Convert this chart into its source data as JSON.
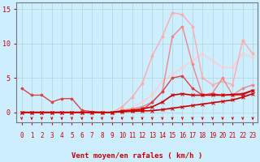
{
  "xlabel": "Vent moyen/en rafales ( km/h )",
  "xlim_min": -0.5,
  "xlim_max": 23.5,
  "ylim_min": -1.5,
  "ylim_max": 16,
  "yticks": [
    0,
    5,
    10,
    15
  ],
  "xticks": [
    0,
    1,
    2,
    3,
    4,
    5,
    6,
    7,
    8,
    9,
    10,
    11,
    12,
    13,
    14,
    15,
    16,
    17,
    18,
    19,
    20,
    21,
    22,
    23
  ],
  "bg_color": "#cceeff",
  "grid_color": "#aacccc",
  "lines": [
    {
      "x": [
        0,
        1,
        2,
        3,
        4,
        5,
        6,
        7,
        8,
        9,
        10,
        11,
        12,
        13,
        14,
        15,
        16,
        17,
        18,
        19,
        20,
        21,
        22,
        23
      ],
      "y": [
        0,
        0,
        0,
        0,
        0,
        0,
        0,
        0,
        0,
        0,
        0.1,
        0.15,
        0.2,
        0.25,
        0.4,
        0.6,
        0.8,
        1.0,
        1.2,
        1.4,
        1.6,
        1.8,
        2.2,
        2.7
      ],
      "color": "#cc0000",
      "lw": 1.2,
      "marker": "x",
      "ms": 3,
      "zorder": 5
    },
    {
      "x": [
        0,
        1,
        2,
        3,
        4,
        5,
        6,
        7,
        8,
        9,
        10,
        11,
        12,
        13,
        14,
        15,
        16,
        17,
        18,
        19,
        20,
        21,
        22,
        23
      ],
      "y": [
        0,
        0,
        0,
        0,
        0,
        0,
        0,
        0,
        0,
        0,
        0.2,
        0.3,
        0.5,
        0.8,
        1.5,
        2.5,
        2.7,
        2.5,
        2.5,
        2.5,
        2.5,
        2.6,
        2.7,
        3.2
      ],
      "color": "#cc0000",
      "lw": 1.2,
      "marker": "x",
      "ms": 3,
      "zorder": 4
    },
    {
      "x": [
        0,
        1,
        2,
        3,
        4,
        5,
        6,
        7,
        8,
        9,
        10,
        11,
        12,
        13,
        14,
        15,
        16,
        17,
        18,
        19,
        20,
        21,
        22,
        23
      ],
      "y": [
        3.5,
        2.5,
        2.5,
        1.5,
        2.0,
        2.0,
        0.3,
        0.1,
        0.0,
        0.0,
        0.1,
        0.2,
        0.3,
        1.5,
        3.0,
        5.0,
        5.3,
        3.5,
        2.5,
        2.7,
        2.5,
        2.5,
        2.5,
        3.2
      ],
      "color": "#dd4444",
      "lw": 1.0,
      "marker": "o",
      "ms": 2,
      "zorder": 3
    },
    {
      "x": [
        0,
        1,
        2,
        3,
        4,
        5,
        6,
        7,
        8,
        9,
        10,
        11,
        12,
        13,
        14,
        15,
        16,
        17,
        18,
        19,
        20,
        21,
        22,
        23
      ],
      "y": [
        0,
        0,
        0,
        0,
        0,
        0,
        0,
        0,
        0,
        0,
        0.3,
        0.5,
        0.8,
        1.5,
        3.0,
        11.0,
        12.5,
        7.0,
        2.5,
        2.8,
        5.0,
        2.5,
        3.5,
        4.0
      ],
      "color": "#ee8888",
      "lw": 1.0,
      "marker": "o",
      "ms": 2,
      "zorder": 2
    },
    {
      "x": [
        0,
        1,
        2,
        3,
        4,
        5,
        6,
        7,
        8,
        9,
        10,
        11,
        12,
        13,
        14,
        15,
        16,
        17,
        18,
        19,
        20,
        21,
        22,
        23
      ],
      "y": [
        0,
        0,
        0,
        0,
        0,
        0,
        0,
        0,
        0,
        0,
        0.8,
        2.2,
        4.2,
        8.2,
        11.0,
        14.5,
        14.2,
        12.5,
        5.0,
        4.0,
        4.5,
        4.0,
        10.5,
        8.5
      ],
      "color": "#ffaaaa",
      "lw": 1.0,
      "marker": "o",
      "ms": 2,
      "zorder": 1
    },
    {
      "x": [
        0,
        1,
        2,
        3,
        4,
        5,
        6,
        7,
        8,
        9,
        10,
        11,
        12,
        13,
        14,
        15,
        16,
        17,
        18,
        19,
        20,
        21,
        22,
        23
      ],
      "y": [
        0,
        0,
        0,
        0,
        0,
        0,
        0,
        0,
        0,
        0,
        0.3,
        0.7,
        1.5,
        2.5,
        4.5,
        5.5,
        6.5,
        7.5,
        8.5,
        7.5,
        6.5,
        6.5,
        8.5,
        8.0
      ],
      "color": "#ffcccc",
      "lw": 1.0,
      "marker": "o",
      "ms": 2,
      "zorder": 0
    }
  ],
  "arrow_color": "#cc0000",
  "xlabel_color": "#cc0000",
  "tick_color": "#cc0000",
  "ytick_color": "#cc0000"
}
